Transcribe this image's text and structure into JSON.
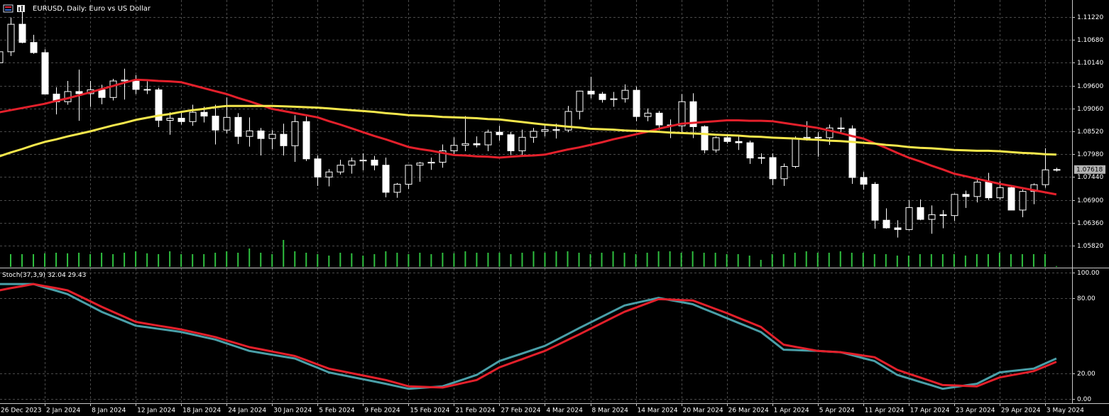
{
  "chart_data": [
    {
      "type": "candlestick",
      "title": "EURUSD, Daily:  Euro vs US Dollar",
      "categories": [
        "26 Dec 2023",
        null,
        null,
        null,
        "2 Jan 2024",
        null,
        null,
        null,
        "8 Jan 2024",
        null,
        null,
        null,
        "12 Jan 2024",
        null,
        null,
        null,
        "18 Jan 2024",
        null,
        null,
        null,
        "24 Jan 2024",
        null,
        null,
        null,
        "30 Jan 2024",
        null,
        null,
        null,
        "5 Feb 2024",
        null,
        null,
        null,
        "9 Feb 2024",
        null,
        null,
        null,
        "15 Feb 2024",
        null,
        null,
        null,
        "21 Feb 2024",
        null,
        null,
        null,
        "27 Feb 2024",
        null,
        null,
        null,
        "4 Mar 2024",
        null,
        null,
        null,
        "8 Mar 2024",
        null,
        null,
        null,
        "14 Mar 2024",
        null,
        null,
        null,
        "20 Mar 2024",
        null,
        null,
        null,
        "26 Mar 2024",
        null,
        null,
        null,
        "1 Apr 2024",
        null,
        null,
        null,
        "5 Apr 2024",
        null,
        null,
        null,
        "11 Apr 2024",
        null,
        null,
        null,
        "17 Apr 2024",
        null,
        null,
        null,
        "23 Apr 2024",
        null,
        null,
        null,
        "29 Apr 2024",
        null,
        null,
        null,
        "3 May 2024",
        null
      ],
      "open": [
        1.1014,
        1.104,
        1.1105,
        1.1062,
        1.1038,
        1.094,
        1.0922,
        1.0946,
        1.0941,
        1.095,
        1.0932,
        1.0971,
        1.0973,
        1.0951,
        1.095,
        1.0878,
        1.0883,
        1.0875,
        1.0897,
        1.0888,
        1.0855,
        1.0885,
        1.084,
        1.0853,
        1.0835,
        1.0845,
        1.0818,
        1.0875,
        1.0787,
        1.0744,
        1.0756,
        1.0772,
        1.0782,
        1.0784,
        1.0772,
        1.0708,
        1.0727,
        1.0772,
        1.0777,
        1.0779,
        1.0806,
        1.0819,
        1.0823,
        1.082,
        1.085,
        1.0844,
        1.0806,
        1.0838,
        1.0852,
        1.0856,
        1.0855,
        1.0899,
        1.0947,
        1.094,
        1.0927,
        1.0929,
        1.0949,
        1.0887,
        1.0895,
        1.0867,
        1.0865,
        1.0922,
        1.0863,
        1.0808,
        1.0837,
        1.0828,
        1.0825,
        1.0789,
        1.079,
        1.074,
        1.0769,
        1.0836,
        1.0838,
        1.0837,
        1.086,
        1.0858,
        1.0743,
        1.0727,
        1.0642,
        1.0624,
        1.062,
        1.0672,
        1.0644,
        1.0655,
        1.0653,
        1.0703,
        1.0698,
        1.0732,
        1.0695,
        1.0719,
        1.0666,
        1.071,
        1.0726,
        1.0761
      ],
      "high": [
        1.1045,
        1.1121,
        1.1139,
        1.108,
        1.1046,
        1.0956,
        1.0971,
        1.0998,
        1.0971,
        1.0962,
        1.0976,
        1.1,
        1.0985,
        1.097,
        1.0955,
        1.0897,
        1.09,
        1.0915,
        1.091,
        1.0915,
        1.0932,
        1.0895,
        1.0885,
        1.086,
        1.0855,
        1.087,
        1.089,
        1.0887,
        1.0795,
        1.0763,
        1.0785,
        1.079,
        1.08,
        1.0794,
        1.079,
        1.073,
        1.0769,
        1.078,
        1.079,
        1.0821,
        1.0838,
        1.0888,
        1.084,
        1.0856,
        1.0865,
        1.0851,
        1.0856,
        1.086,
        1.087,
        1.087,
        1.0912,
        1.0948,
        1.0981,
        1.0945,
        1.0945,
        1.0963,
        1.0958,
        1.0906,
        1.09,
        1.088,
        1.094,
        1.0942,
        1.0866,
        1.084,
        1.0845,
        1.0842,
        1.083,
        1.08,
        1.08,
        1.0776,
        1.084,
        1.0876,
        1.085,
        1.0868,
        1.0885,
        1.0866,
        1.0756,
        1.0732,
        1.067,
        1.0642,
        1.069,
        1.0691,
        1.0677,
        1.0666,
        1.0705,
        1.0712,
        1.074,
        1.0754,
        1.0734,
        1.0725,
        1.0715,
        1.0729,
        1.0812,
        1.0766
      ],
      "low": [
        1.1005,
        1.103,
        1.106,
        1.1035,
        1.094,
        1.0892,
        1.0915,
        1.0877,
        1.091,
        1.0916,
        1.0925,
        1.0927,
        1.094,
        1.094,
        1.0862,
        1.0844,
        1.0868,
        1.0865,
        1.0873,
        1.0821,
        1.0847,
        1.0822,
        1.0816,
        1.0795,
        1.081,
        1.0795,
        1.078,
        1.0782,
        1.0723,
        1.0722,
        1.075,
        1.0752,
        1.076,
        1.076,
        1.0696,
        1.0695,
        1.0716,
        1.0733,
        1.0761,
        1.0766,
        1.0796,
        1.0805,
        1.0814,
        1.0805,
        1.083,
        1.0796,
        1.0796,
        1.0825,
        1.084,
        1.0835,
        1.085,
        1.088,
        1.093,
        1.092,
        1.091,
        1.092,
        1.0876,
        1.0876,
        1.0855,
        1.0836,
        1.085,
        1.0836,
        1.08,
        1.0802,
        1.0823,
        1.0808,
        1.0775,
        1.0775,
        1.0725,
        1.0723,
        1.0765,
        1.083,
        1.0792,
        1.082,
        1.085,
        1.0728,
        1.0714,
        1.0622,
        1.0622,
        1.0601,
        1.0618,
        1.0642,
        1.061,
        1.0623,
        1.064,
        1.0671,
        1.0684,
        1.069,
        1.069,
        1.0666,
        1.0649,
        1.068,
        1.0719,
        1.0757
      ],
      "close": [
        1.104,
        1.1105,
        1.1062,
        1.1038,
        1.094,
        1.0922,
        1.0946,
        1.0941,
        1.095,
        1.0932,
        1.0971,
        1.0973,
        1.0951,
        1.095,
        1.0878,
        1.0883,
        1.0875,
        1.0897,
        1.0888,
        1.0855,
        1.0885,
        1.084,
        1.0853,
        1.0835,
        1.0845,
        1.0818,
        1.0875,
        1.0787,
        1.0744,
        1.0756,
        1.0772,
        1.0782,
        1.0784,
        1.0772,
        1.0708,
        1.0727,
        1.0772,
        1.0777,
        1.0779,
        1.0806,
        1.0819,
        1.0823,
        1.082,
        1.085,
        1.0844,
        1.0806,
        1.0838,
        1.0852,
        1.0856,
        1.0855,
        1.0899,
        1.0947,
        1.094,
        1.0927,
        1.0929,
        1.0949,
        1.0887,
        1.0895,
        1.0867,
        1.0865,
        1.0922,
        1.0863,
        1.0808,
        1.0837,
        1.0828,
        1.0825,
        1.0789,
        1.079,
        1.074,
        1.0769,
        1.0836,
        1.0838,
        1.0837,
        1.086,
        1.0858,
        1.0743,
        1.0727,
        1.0642,
        1.0624,
        1.062,
        1.0672,
        1.0644,
        1.0655,
        1.0653,
        1.0703,
        1.0698,
        1.0732,
        1.0695,
        1.0719,
        1.0666,
        1.071,
        1.0726,
        1.0761,
        1.07618
      ],
      "bull_color": "#000000",
      "bear_color": "#ffffff",
      "outline_color": "#ffffff",
      "lines": [
        {
          "color": "#e3202b",
          "values": [
            1.0897,
            1.0902,
            1.0907,
            1.0912,
            1.0917,
            1.0924,
            1.093,
            1.0937,
            1.0944,
            1.0952,
            1.0959,
            1.0967,
            1.0974,
            1.0973,
            1.0971,
            1.097,
            1.0968,
            1.0961,
            1.0954,
            1.0947,
            1.094,
            1.0931,
            1.0923,
            1.0914,
            1.0905,
            1.09,
            1.0895,
            1.089,
            1.0885,
            1.0876,
            1.0868,
            1.0859,
            1.085,
            1.0841,
            1.0833,
            1.0824,
            1.0815,
            1.081,
            1.0806,
            1.0801,
            1.0796,
            1.0795,
            1.0793,
            1.0792,
            1.079,
            1.0792,
            1.0794,
            1.0795,
            1.0797,
            1.0803,
            1.0809,
            1.0814,
            1.082,
            1.0826,
            1.0833,
            1.0839,
            1.0845,
            1.0851,
            1.0858,
            1.0864,
            1.087,
            1.0872,
            1.0874,
            1.0876,
            1.0878,
            1.0878,
            1.0877,
            1.0877,
            1.0876,
            1.0872,
            1.0868,
            1.0864,
            1.086,
            1.0854,
            1.0848,
            1.0841,
            1.0835,
            1.0824,
            1.0813,
            1.0801,
            1.079,
            1.0781,
            1.0771,
            1.0762,
            1.0752,
            1.0746,
            1.074,
            1.0734,
            1.0728,
            1.0723,
            1.0718,
            1.0713,
            1.0708,
            1.0703
          ]
        },
        {
          "color": "#f4e64c",
          "values": [
            1.0793,
            1.0802,
            1.081,
            1.0819,
            1.0827,
            1.0833,
            1.084,
            1.0846,
            1.0852,
            1.0859,
            1.0866,
            1.0872,
            1.0879,
            1.0884,
            1.0889,
            1.0893,
            1.0898,
            1.0902,
            1.0905,
            1.0909,
            1.0912,
            1.0912,
            1.0912,
            1.0912,
            1.0912,
            1.0911,
            1.091,
            1.0909,
            1.0908,
            1.0906,
            1.0904,
            1.0902,
            1.09,
            1.0898,
            1.0895,
            1.0893,
            1.089,
            1.0889,
            1.0888,
            1.0886,
            1.0885,
            1.0884,
            1.0883,
            1.0881,
            1.088,
            1.0877,
            1.0874,
            1.0871,
            1.0868,
            1.0866,
            1.0863,
            1.0861,
            1.0858,
            1.0857,
            1.0856,
            1.0854,
            1.0853,
            1.0852,
            1.0851,
            1.0849,
            1.0848,
            1.0847,
            1.0846,
            1.0844,
            1.0843,
            1.0842,
            1.084,
            1.0839,
            1.0837,
            1.0836,
            1.0835,
            1.0833,
            1.0832,
            1.083,
            1.0829,
            1.0827,
            1.0825,
            1.0823,
            1.082,
            1.0818,
            1.0815,
            1.0813,
            1.0812,
            1.081,
            1.0808,
            1.0807,
            1.0806,
            1.0806,
            1.0805,
            1.0803,
            1.0801,
            1.08,
            1.0798,
            1.0797
          ]
        }
      ],
      "volume": {
        "color": "#2fbf3f",
        "lim": [
          0,
          100
        ],
        "values": [
          45,
          45,
          45,
          45,
          48,
          50,
          48,
          50,
          45,
          50,
          45,
          50,
          55,
          48,
          45,
          55,
          45,
          45,
          45,
          50,
          55,
          50,
          65,
          50,
          45,
          95,
          55,
          50,
          45,
          40,
          50,
          48,
          40,
          45,
          55,
          50,
          45,
          50,
          45,
          50,
          48,
          55,
          50,
          50,
          50,
          45,
          50,
          55,
          50,
          55,
          55,
          50,
          45,
          50,
          55,
          50,
          45,
          50,
          55,
          55,
          50,
          55,
          50,
          50,
          45,
          45,
          40,
          25,
          45,
          45,
          50,
          55,
          50,
          50,
          55,
          50,
          50,
          45,
          45,
          40,
          40,
          45,
          45,
          45,
          45,
          40,
          45,
          45,
          50,
          45,
          45,
          45,
          45,
          3
        ]
      },
      "ylim": [
        1.05317,
        1.11589
      ],
      "yticks": [
        {
          "value": 1.1122,
          "label": "1.11220"
        },
        {
          "value": 1.1068,
          "label": "1.10680"
        },
        {
          "value": 1.1014,
          "label": "1.10140"
        },
        {
          "value": 1.096,
          "label": "1.09600"
        },
        {
          "value": 1.0906,
          "label": "1.09060"
        },
        {
          "value": 1.0852,
          "label": "1.08520"
        },
        {
          "value": 1.0798,
          "label": "1.07980"
        },
        {
          "value": 1.0744,
          "label": "1.07440"
        },
        {
          "value": 1.069,
          "label": "1.06900"
        },
        {
          "value": 1.0636,
          "label": "1.06360"
        },
        {
          "value": 1.0582,
          "label": "1.05820"
        }
      ],
      "last_price": {
        "value": 1.07618,
        "label": "1.07618"
      },
      "grid": true
    },
    {
      "type": "line",
      "title": "Stoch(37,3,9)",
      "series": [
        {
          "color": "#4a9fa8",
          "value_label": "32.04",
          "values": [
            91,
            91,
            91,
            91,
            88.3,
            85.7,
            83,
            78.3,
            73.7,
            69,
            65.3,
            61.7,
            58,
            56.8,
            55.5,
            54.3,
            53,
            51,
            49,
            47,
            44,
            41,
            38,
            36.5,
            35,
            33.5,
            32,
            28.3,
            24.7,
            21,
            19.2,
            17.4,
            15.6,
            13.8,
            12,
            10,
            8,
            8.7,
            9.3,
            10,
            13,
            16,
            19,
            24.5,
            30,
            33,
            36,
            39,
            42,
            46.7,
            51.3,
            56,
            60.5,
            65,
            69.5,
            74,
            76,
            78,
            80,
            78.3,
            76.7,
            75,
            71.3,
            67.7,
            64,
            60.3,
            56.7,
            53,
            46,
            39,
            38.7,
            38.3,
            38,
            37.5,
            37,
            34.7,
            32.3,
            30,
            24.5,
            19,
            16.3,
            13.5,
            10.8,
            8,
            9.3,
            10.7,
            12,
            16.5,
            21,
            22,
            23,
            24,
            28,
            32.04
          ]
        },
        {
          "color": "#e3202b",
          "value_label": "29.43",
          "values": [
            86,
            87.7,
            89.3,
            91,
            89.3,
            87.7,
            86,
            81.7,
            77.3,
            73,
            69,
            65,
            61,
            59.5,
            58,
            56.5,
            55,
            53,
            51,
            49,
            46.3,
            43.7,
            41,
            39.3,
            37.5,
            35.8,
            34,
            30.7,
            27.3,
            24,
            22.2,
            20.4,
            18.6,
            16.8,
            15,
            12.5,
            10,
            9.7,
            9.3,
            9,
            11,
            13,
            15,
            20,
            25,
            28.3,
            31.5,
            34.8,
            38,
            42.3,
            46.7,
            51,
            55.5,
            60,
            64.5,
            69,
            72.3,
            75.7,
            79,
            78.7,
            78.3,
            78,
            74.7,
            71.3,
            68,
            64.3,
            60.7,
            57,
            50,
            43,
            41.3,
            39.7,
            38,
            37.5,
            37,
            35.7,
            34.3,
            33,
            28,
            23,
            20,
            17,
            14,
            11,
            10.7,
            10.3,
            10,
            13.5,
            17,
            18.7,
            20.3,
            22,
            25.7,
            29.43
          ]
        }
      ],
      "ylim": [
        -3.4,
        103.4
      ],
      "yticks": [
        {
          "value": 100,
          "label": "100.00"
        },
        {
          "value": 80,
          "label": "80.00"
        },
        {
          "value": 20,
          "label": "20.00"
        },
        {
          "value": 0,
          "label": "0.00"
        }
      ],
      "grid": true
    }
  ]
}
